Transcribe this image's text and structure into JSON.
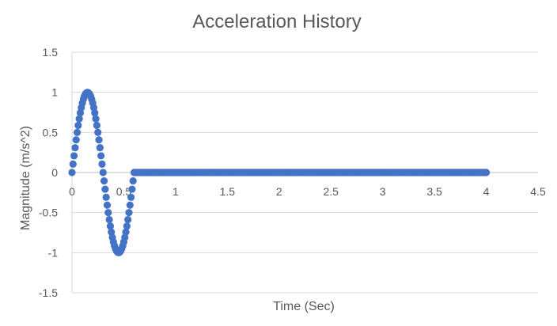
{
  "chart_data": {
    "type": "scatter",
    "title": "Acceleration History",
    "xlabel": "Time (Sec)",
    "ylabel": "Magnitude (m/s^2)",
    "xlim": [
      0,
      4.5
    ],
    "ylim": [
      -1.5,
      1.5
    ],
    "xticks": [
      0,
      0.5,
      1,
      1.5,
      2,
      2.5,
      3,
      3.5,
      4,
      4.5
    ],
    "xtick_labels": [
      "0",
      "0.5",
      "1",
      "1.5",
      "2",
      "2.5",
      "3",
      "3.5",
      "4",
      "4.5"
    ],
    "yticks": [
      1.5,
      1,
      0.5,
      0,
      -0.5,
      -1,
      -1.5
    ],
    "ytick_labels": [
      "1.5",
      "1",
      "0.5",
      "0",
      "-0.5",
      "-1",
      "-1.5"
    ],
    "grid": true,
    "legend": "none",
    "marker_color": "#4472C4",
    "series": [
      {
        "name": "",
        "description_source": "pulse sin(2*pi*t/0.6) for t in [0, 0.6], then 0 to t = 4",
        "x_start": 0,
        "x_end": 4,
        "x_step": 0.01,
        "pulse_end": 0.6,
        "amplitude": 1
      }
    ]
  }
}
